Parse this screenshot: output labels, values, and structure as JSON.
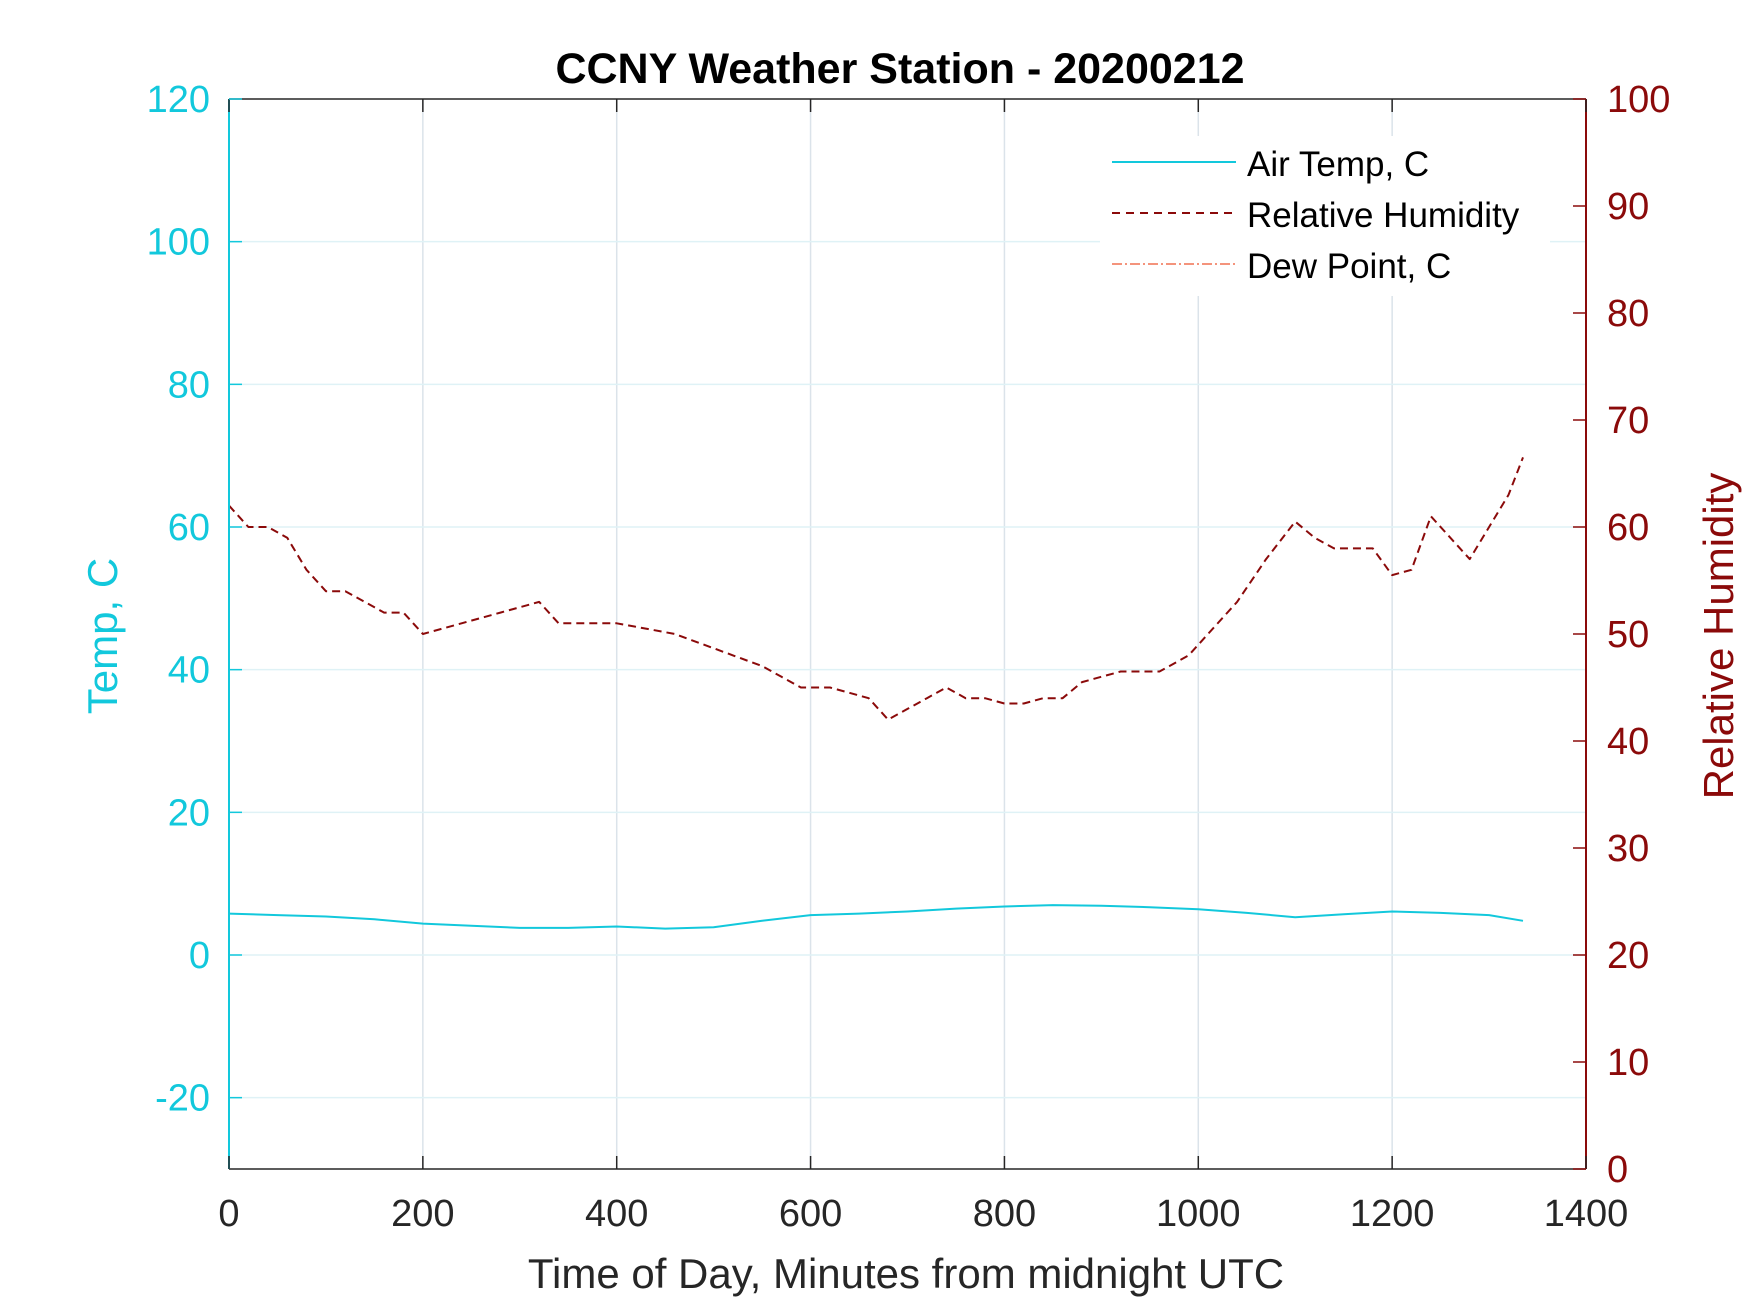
{
  "chart_data": {
    "type": "line",
    "title": "CCNY Weather Station - 20200212",
    "xlabel": "Time of Day, Minutes from midnight UTC",
    "ylabel_left": "Temp, C",
    "ylabel_right": "Relative Humidity",
    "xlim": [
      0,
      1400
    ],
    "ylim_left": [
      -30,
      120
    ],
    "ylim_right": [
      0,
      100
    ],
    "x_ticks": [
      0,
      200,
      400,
      600,
      800,
      1000,
      1200,
      1400
    ],
    "y_left_ticks": [
      -20,
      0,
      20,
      40,
      60,
      80,
      100,
      120
    ],
    "y_right_ticks": [
      0,
      10,
      20,
      30,
      40,
      50,
      60,
      70,
      80,
      90,
      100
    ],
    "grid": true,
    "legend_position": "top-right",
    "colors": {
      "left_axis": "#12c8dc",
      "right_axis": "#8b0a0a",
      "dew_point": "#f07050",
      "grid": "#dbe3ea",
      "frame": "#262626"
    },
    "series": [
      {
        "name": "Air Temp, C",
        "axis": "left",
        "style": "solid",
        "x": [
          0,
          50,
          100,
          150,
          200,
          250,
          300,
          350,
          400,
          450,
          500,
          550,
          600,
          650,
          700,
          750,
          800,
          850,
          900,
          950,
          1000,
          1050,
          1100,
          1150,
          1200,
          1250,
          1300,
          1335
        ],
        "values": [
          5.8,
          5.6,
          5.4,
          5.0,
          4.4,
          4.1,
          3.8,
          3.8,
          4.0,
          3.7,
          3.9,
          4.8,
          5.6,
          5.8,
          6.1,
          6.5,
          6.8,
          7.0,
          6.9,
          6.7,
          6.4,
          5.9,
          5.3,
          5.7,
          6.1,
          5.9,
          5.6,
          4.8
        ]
      },
      {
        "name": "Relative Humidity",
        "axis": "right",
        "style": "dashed",
        "x": [
          0,
          20,
          40,
          60,
          80,
          100,
          120,
          140,
          160,
          180,
          200,
          240,
          280,
          320,
          340,
          370,
          400,
          430,
          460,
          490,
          520,
          550,
          570,
          590,
          620,
          640,
          660,
          680,
          700,
          720,
          740,
          760,
          780,
          800,
          820,
          840,
          860,
          880,
          920,
          960,
          990,
          1010,
          1040,
          1070,
          1100,
          1120,
          1140,
          1180,
          1200,
          1220,
          1240,
          1260,
          1280,
          1300,
          1320,
          1335
        ],
        "values": [
          62,
          60,
          60,
          59,
          56,
          54,
          54,
          53,
          52,
          52,
          50,
          51,
          52,
          53,
          51,
          51,
          51,
          50.5,
          50,
          49,
          48,
          47,
          46,
          45,
          45,
          44.5,
          44,
          42,
          43,
          44,
          45,
          44,
          44,
          43.5,
          43.5,
          44,
          44,
          45.5,
          46.5,
          46.5,
          48,
          50,
          53,
          57,
          60.5,
          59,
          58,
          58,
          55.5,
          56,
          61,
          59,
          57,
          60,
          63,
          66.5
        ]
      },
      {
        "name": "Dew Point, C",
        "axis": "left",
        "style": "dashdot",
        "x": [],
        "values": []
      }
    ]
  }
}
